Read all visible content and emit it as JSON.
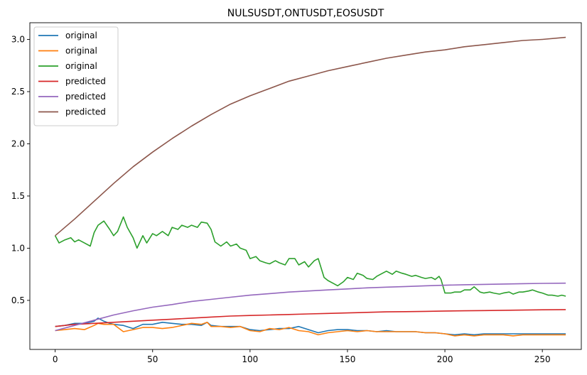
{
  "chart_data": {
    "type": "line",
    "title": "NULSUSDT,ONTUSDT,EOSUSDT",
    "xlabel": "",
    "ylabel": "",
    "xlim": [
      -13,
      270
    ],
    "ylim": [
      0.03,
      3.16
    ],
    "x_ticks": [
      0,
      50,
      100,
      150,
      200,
      250
    ],
    "y_ticks": [
      0.5,
      1.0,
      1.5,
      2.0,
      2.5,
      3.0
    ],
    "y_tick_labels": [
      "0.5",
      "1.0",
      "1.5",
      "2.0",
      "2.5",
      "3.0"
    ],
    "grid": false,
    "legend_position": "top-left",
    "series": [
      {
        "name": "original",
        "color": "#1f77b4",
        "x": [
          0,
          5,
          10,
          15,
          20,
          22,
          25,
          28,
          30,
          35,
          40,
          45,
          50,
          55,
          60,
          65,
          70,
          75,
          78,
          80,
          85,
          90,
          95,
          100,
          105,
          110,
          115,
          120,
          125,
          130,
          135,
          140,
          145,
          150,
          155,
          160,
          165,
          170,
          175,
          180,
          185,
          190,
          195,
          200,
          205,
          210,
          215,
          220,
          225,
          230,
          235,
          240,
          245,
          250,
          255,
          262
        ],
        "values": [
          0.25,
          0.26,
          0.28,
          0.28,
          0.3,
          0.33,
          0.3,
          0.28,
          0.27,
          0.26,
          0.23,
          0.27,
          0.27,
          0.29,
          0.28,
          0.27,
          0.27,
          0.26,
          0.29,
          0.26,
          0.25,
          0.25,
          0.25,
          0.22,
          0.21,
          0.22,
          0.23,
          0.23,
          0.25,
          0.22,
          0.19,
          0.21,
          0.22,
          0.22,
          0.21,
          0.21,
          0.2,
          0.21,
          0.2,
          0.2,
          0.2,
          0.19,
          0.19,
          0.18,
          0.17,
          0.18,
          0.17,
          0.18,
          0.18,
          0.18,
          0.18,
          0.18,
          0.18,
          0.18,
          0.18,
          0.18
        ]
      },
      {
        "name": "original",
        "color": "#ff7f0e",
        "x": [
          0,
          5,
          10,
          15,
          20,
          22,
          25,
          28,
          30,
          35,
          40,
          45,
          50,
          55,
          60,
          65,
          70,
          75,
          78,
          80,
          85,
          90,
          95,
          100,
          105,
          110,
          115,
          120,
          125,
          130,
          135,
          140,
          145,
          150,
          155,
          160,
          165,
          170,
          175,
          180,
          185,
          190,
          195,
          200,
          205,
          210,
          215,
          220,
          225,
          230,
          235,
          240,
          245,
          250,
          255,
          262
        ],
        "values": [
          0.21,
          0.22,
          0.23,
          0.22,
          0.26,
          0.28,
          0.27,
          0.27,
          0.27,
          0.2,
          0.22,
          0.24,
          0.24,
          0.23,
          0.24,
          0.26,
          0.28,
          0.27,
          0.29,
          0.25,
          0.25,
          0.24,
          0.25,
          0.21,
          0.2,
          0.23,
          0.22,
          0.24,
          0.21,
          0.2,
          0.17,
          0.19,
          0.2,
          0.21,
          0.2,
          0.21,
          0.2,
          0.2,
          0.2,
          0.2,
          0.2,
          0.19,
          0.19,
          0.18,
          0.16,
          0.17,
          0.16,
          0.17,
          0.17,
          0.17,
          0.16,
          0.17,
          0.17,
          0.17,
          0.17,
          0.17
        ]
      },
      {
        "name": "original",
        "color": "#2ca02c",
        "x": [
          0,
          2,
          5,
          8,
          10,
          12,
          15,
          18,
          20,
          22,
          25,
          28,
          30,
          32,
          35,
          37,
          40,
          42,
          45,
          47,
          50,
          52,
          55,
          58,
          60,
          63,
          65,
          68,
          70,
          73,
          75,
          78,
          80,
          82,
          85,
          88,
          90,
          93,
          95,
          98,
          100,
          103,
          105,
          108,
          110,
          113,
          115,
          118,
          120,
          123,
          125,
          128,
          130,
          133,
          135,
          138,
          140,
          143,
          145,
          148,
          150,
          153,
          155,
          158,
          160,
          163,
          165,
          168,
          170,
          173,
          175,
          178,
          180,
          183,
          185,
          188,
          190,
          193,
          195,
          197,
          198,
          200,
          203,
          205,
          208,
          210,
          213,
          215,
          218,
          220,
          223,
          225,
          228,
          230,
          233,
          235,
          238,
          240,
          243,
          245,
          248,
          250,
          253,
          255,
          258,
          260,
          262
        ],
        "values": [
          1.12,
          1.05,
          1.08,
          1.1,
          1.06,
          1.08,
          1.05,
          1.02,
          1.15,
          1.22,
          1.26,
          1.18,
          1.12,
          1.16,
          1.3,
          1.2,
          1.1,
          1.0,
          1.12,
          1.05,
          1.14,
          1.12,
          1.16,
          1.12,
          1.2,
          1.18,
          1.22,
          1.2,
          1.22,
          1.2,
          1.25,
          1.24,
          1.18,
          1.06,
          1.02,
          1.06,
          1.02,
          1.04,
          1.0,
          0.98,
          0.9,
          0.92,
          0.88,
          0.86,
          0.85,
          0.88,
          0.86,
          0.84,
          0.9,
          0.9,
          0.84,
          0.87,
          0.82,
          0.88,
          0.9,
          0.72,
          0.69,
          0.66,
          0.64,
          0.68,
          0.72,
          0.7,
          0.76,
          0.74,
          0.71,
          0.7,
          0.73,
          0.76,
          0.78,
          0.75,
          0.78,
          0.76,
          0.75,
          0.73,
          0.74,
          0.72,
          0.71,
          0.72,
          0.7,
          0.73,
          0.7,
          0.57,
          0.57,
          0.58,
          0.58,
          0.6,
          0.6,
          0.63,
          0.58,
          0.57,
          0.58,
          0.57,
          0.56,
          0.57,
          0.58,
          0.56,
          0.58,
          0.58,
          0.59,
          0.6,
          0.58,
          0.57,
          0.55,
          0.55,
          0.54,
          0.55,
          0.54
        ]
      },
      {
        "name": "predicted",
        "color": "#d62728",
        "x": [
          0,
          10,
          20,
          30,
          40,
          50,
          60,
          70,
          80,
          90,
          100,
          110,
          120,
          130,
          140,
          150,
          160,
          170,
          180,
          190,
          200,
          210,
          220,
          230,
          240,
          250,
          262
        ],
        "values": [
          0.25,
          0.27,
          0.28,
          0.29,
          0.3,
          0.31,
          0.32,
          0.33,
          0.34,
          0.35,
          0.355,
          0.36,
          0.365,
          0.37,
          0.375,
          0.38,
          0.385,
          0.39,
          0.392,
          0.395,
          0.398,
          0.4,
          0.402,
          0.405,
          0.407,
          0.41,
          0.412
        ]
      },
      {
        "name": "predicted",
        "color": "#9467bd",
        "x": [
          0,
          10,
          20,
          30,
          40,
          50,
          60,
          70,
          80,
          90,
          100,
          110,
          120,
          130,
          140,
          150,
          160,
          170,
          180,
          190,
          200,
          210,
          220,
          230,
          240,
          250,
          262
        ],
        "values": [
          0.21,
          0.26,
          0.31,
          0.36,
          0.4,
          0.435,
          0.46,
          0.49,
          0.51,
          0.53,
          0.55,
          0.565,
          0.58,
          0.59,
          0.6,
          0.61,
          0.62,
          0.627,
          0.633,
          0.64,
          0.645,
          0.65,
          0.653,
          0.657,
          0.66,
          0.663,
          0.665
        ]
      },
      {
        "name": "predicted",
        "color": "#8c564b",
        "x": [
          0,
          10,
          20,
          30,
          40,
          50,
          60,
          70,
          80,
          90,
          100,
          110,
          120,
          130,
          140,
          150,
          160,
          170,
          180,
          190,
          200,
          210,
          220,
          230,
          240,
          250,
          262
        ],
        "values": [
          1.12,
          1.28,
          1.45,
          1.62,
          1.78,
          1.92,
          2.05,
          2.17,
          2.28,
          2.38,
          2.46,
          2.53,
          2.6,
          2.65,
          2.7,
          2.74,
          2.78,
          2.82,
          2.85,
          2.88,
          2.9,
          2.93,
          2.95,
          2.97,
          2.99,
          3.0,
          3.02
        ]
      }
    ]
  }
}
